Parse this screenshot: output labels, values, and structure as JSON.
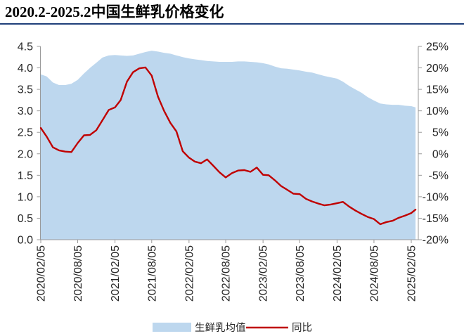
{
  "chart_data": {
    "type": "area",
    "title": "2020.2-2025.2中国生鲜乳价格变化",
    "grid": false,
    "legend": "bottom",
    "x": [
      "2020/02/05",
      "2020/03/05",
      "2020/04/05",
      "2020/05/05",
      "2020/06/05",
      "2020/07/05",
      "2020/08/05",
      "2020/09/05",
      "2020/10/05",
      "2020/11/05",
      "2020/12/05",
      "2021/01/05",
      "2021/02/05",
      "2021/03/05",
      "2021/04/05",
      "2021/05/05",
      "2021/06/05",
      "2021/07/05",
      "2021/08/05",
      "2021/09/05",
      "2021/10/05",
      "2021/11/05",
      "2021/12/05",
      "2022/01/05",
      "2022/02/05",
      "2022/03/05",
      "2022/04/05",
      "2022/05/05",
      "2022/06/05",
      "2022/07/05",
      "2022/08/05",
      "2022/09/05",
      "2022/10/05",
      "2022/11/05",
      "2022/12/05",
      "2023/01/05",
      "2023/02/05",
      "2023/03/05",
      "2023/04/05",
      "2023/05/05",
      "2023/06/05",
      "2023/07/05",
      "2023/08/05",
      "2023/09/05",
      "2023/10/05",
      "2023/11/05",
      "2023/12/05",
      "2024/01/05",
      "2024/02/05",
      "2024/03/05",
      "2024/04/05",
      "2024/05/05",
      "2024/06/05",
      "2024/07/05",
      "2024/08/05",
      "2024/09/05",
      "2024/10/05",
      "2024/11/05",
      "2024/12/05",
      "2025/01/05",
      "2025/02/05",
      "2025/02/26"
    ],
    "x_ticks": [
      "2020/02/05",
      "2020/08/05",
      "2021/02/05",
      "2021/08/05",
      "2022/02/05",
      "2022/08/05",
      "2023/02/05",
      "2023/08/05",
      "2024/02/05",
      "2024/08/05",
      "2025/02/05"
    ],
    "y_left": {
      "lim": [
        0,
        4.5
      ],
      "ticks": [
        "0.0",
        "0.5",
        "1.0",
        "1.5",
        "2.0",
        "2.5",
        "3.0",
        "3.5",
        "4.0",
        "4.5"
      ]
    },
    "y_right": {
      "lim": [
        -20,
        25
      ],
      "ticks": [
        "-20%",
        "-15%",
        "-10%",
        "-5%",
        "0%",
        "5%",
        "10%",
        "15%",
        "20%",
        "25%"
      ]
    },
    "series": [
      {
        "name": "生鲜乳均值",
        "type": "area",
        "axis": "left",
        "color": "#bdd7ee",
        "values": [
          3.85,
          3.8,
          3.66,
          3.6,
          3.6,
          3.63,
          3.72,
          3.87,
          4.0,
          4.12,
          4.24,
          4.29,
          4.3,
          4.29,
          4.28,
          4.29,
          4.33,
          4.37,
          4.4,
          4.38,
          4.35,
          4.33,
          4.29,
          4.25,
          4.22,
          4.2,
          4.18,
          4.16,
          4.15,
          4.14,
          4.14,
          4.14,
          4.15,
          4.15,
          4.14,
          4.13,
          4.11,
          4.08,
          4.03,
          3.99,
          3.98,
          3.96,
          3.94,
          3.91,
          3.89,
          3.85,
          3.81,
          3.78,
          3.75,
          3.68,
          3.58,
          3.5,
          3.42,
          3.32,
          3.24,
          3.17,
          3.15,
          3.14,
          3.14,
          3.12,
          3.11,
          3.08
        ]
      },
      {
        "name": "同比",
        "type": "line",
        "axis": "right",
        "unit": "%",
        "color": "#c00000",
        "values": [
          6.0,
          4.0,
          1.5,
          0.8,
          0.5,
          0.4,
          2.5,
          4.3,
          4.4,
          5.5,
          7.8,
          10.2,
          10.8,
          12.5,
          16.8,
          19.0,
          19.9,
          20.1,
          18.2,
          13.3,
          10.0,
          7.2,
          5.2,
          0.6,
          -0.9,
          -1.8,
          -2.2,
          -1.3,
          -2.8,
          -4.3,
          -5.5,
          -4.5,
          -3.9,
          -3.8,
          -4.2,
          -3.2,
          -4.9,
          -5.0,
          -6.2,
          -7.5,
          -8.4,
          -9.3,
          -9.4,
          -10.5,
          -11.1,
          -11.6,
          -12.0,
          -11.8,
          -11.5,
          -11.2,
          -12.3,
          -13.2,
          -14.0,
          -14.7,
          -15.2,
          -16.4,
          -15.9,
          -15.6,
          -14.9,
          -14.4,
          -13.8,
          -13.0
        ]
      }
    ]
  }
}
